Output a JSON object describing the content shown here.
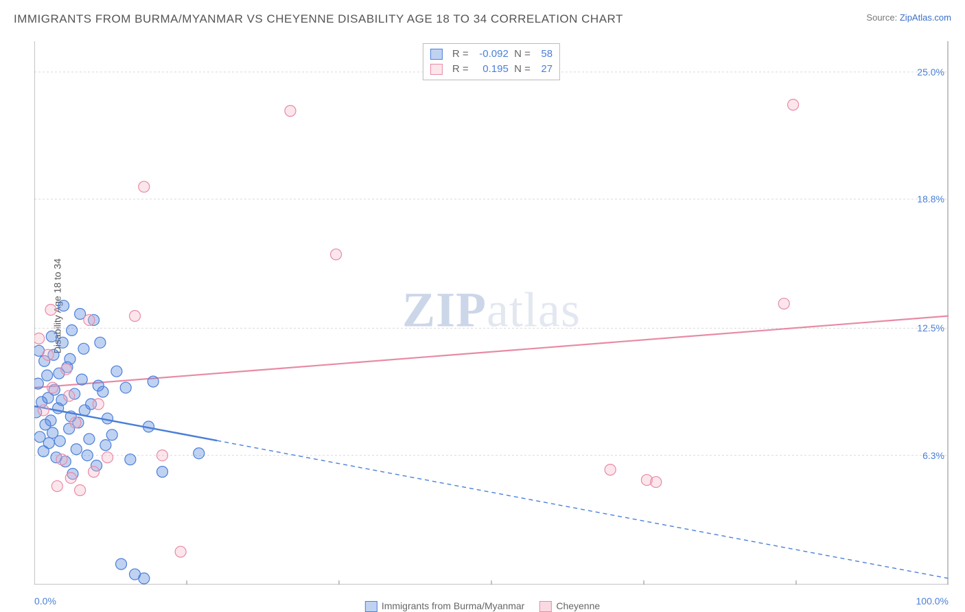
{
  "title": "IMMIGRANTS FROM BURMA/MYANMAR VS CHEYENNE DISABILITY AGE 18 TO 34 CORRELATION CHART",
  "source_label": "Source:",
  "source_name": "ZipAtlas.com",
  "y_axis_label": "Disability Age 18 to 34",
  "watermark_a": "ZIP",
  "watermark_b": "atlas",
  "chart": {
    "type": "scatter",
    "xlim": [
      0,
      100
    ],
    "ylim": [
      0,
      26.5
    ],
    "x_tick_labels": [
      "0.0%",
      "100.0%"
    ],
    "x_tick_positions": [
      0,
      100
    ],
    "x_minor_ticks": [
      16.67,
      33.33,
      50,
      66.67,
      83.33
    ],
    "y_tick_labels": [
      "6.3%",
      "12.5%",
      "18.8%",
      "25.0%"
    ],
    "y_tick_positions": [
      6.3,
      12.5,
      18.8,
      25.0
    ],
    "grid_color": "#d9d9d9",
    "axis_color": "#888888",
    "background_color": "#ffffff",
    "marker_radius": 8,
    "marker_stroke_width": 1.2,
    "marker_fill_opacity": 0.35,
    "series": [
      {
        "name": "Immigrants from Burma/Myanmar",
        "legend_label": "Immigrants from Burma/Myanmar",
        "color_stroke": "#4a7fd9",
        "color_fill": "#4a7fd9",
        "R": "-0.092",
        "N": "58",
        "trend": {
          "x1": 0,
          "y1": 8.7,
          "x2": 100,
          "y2": 0.3,
          "solid_until_x": 20,
          "line_width": 2.5,
          "dash": "6,5"
        },
        "points": [
          [
            0.2,
            8.4
          ],
          [
            0.4,
            9.8
          ],
          [
            0.6,
            7.2
          ],
          [
            0.8,
            8.9
          ],
          [
            1.0,
            6.5
          ],
          [
            1.2,
            7.8
          ],
          [
            1.4,
            10.2
          ],
          [
            1.5,
            9.1
          ],
          [
            1.6,
            6.9
          ],
          [
            1.8,
            8.0
          ],
          [
            2.0,
            7.4
          ],
          [
            2.2,
            9.5
          ],
          [
            2.4,
            6.2
          ],
          [
            2.6,
            8.6
          ],
          [
            2.8,
            7.0
          ],
          [
            3.0,
            9.0
          ],
          [
            3.2,
            13.6
          ],
          [
            3.4,
            6.0
          ],
          [
            3.6,
            10.6
          ],
          [
            3.8,
            7.6
          ],
          [
            4.0,
            8.2
          ],
          [
            4.2,
            5.4
          ],
          [
            4.4,
            9.3
          ],
          [
            4.6,
            6.6
          ],
          [
            4.8,
            7.9
          ],
          [
            5.0,
            13.2
          ],
          [
            5.2,
            10.0
          ],
          [
            5.5,
            8.5
          ],
          [
            5.8,
            6.3
          ],
          [
            6.0,
            7.1
          ],
          [
            6.5,
            12.9
          ],
          [
            6.8,
            5.8
          ],
          [
            7.2,
            11.8
          ],
          [
            7.5,
            9.4
          ],
          [
            7.8,
            6.8
          ],
          [
            8.0,
            8.1
          ],
          [
            8.5,
            7.3
          ],
          [
            9.0,
            10.4
          ],
          [
            9.5,
            1.0
          ],
          [
            10.0,
            9.6
          ],
          [
            10.5,
            6.1
          ],
          [
            11.0,
            0.5
          ],
          [
            12.0,
            0.3
          ],
          [
            12.5,
            7.7
          ],
          [
            13.0,
            9.9
          ],
          [
            14.0,
            5.5
          ],
          [
            2.1,
            11.2
          ],
          [
            3.1,
            11.8
          ],
          [
            4.1,
            12.4
          ],
          [
            1.1,
            10.9
          ],
          [
            0.5,
            11.4
          ],
          [
            1.9,
            12.1
          ],
          [
            2.7,
            10.3
          ],
          [
            3.9,
            11.0
          ],
          [
            5.4,
            11.5
          ],
          [
            6.2,
            8.8
          ],
          [
            7.0,
            9.7
          ],
          [
            18.0,
            6.4
          ]
        ]
      },
      {
        "name": "Cheyenne",
        "legend_label": "Cheyenne",
        "color_stroke": "#e88aa5",
        "color_fill": "#f4b6c8",
        "R": "0.195",
        "N": "27",
        "trend": {
          "x1": 0,
          "y1": 9.6,
          "x2": 100,
          "y2": 13.1,
          "solid_until_x": 100,
          "line_width": 2.2,
          "dash": ""
        },
        "points": [
          [
            0.5,
            12.0
          ],
          [
            1.0,
            8.5
          ],
          [
            1.5,
            11.2
          ],
          [
            2.0,
            9.6
          ],
          [
            2.5,
            4.8
          ],
          [
            3.0,
            6.1
          ],
          [
            3.5,
            10.5
          ],
          [
            4.0,
            5.2
          ],
          [
            4.5,
            7.9
          ],
          [
            5.0,
            4.6
          ],
          [
            6.0,
            12.9
          ],
          [
            6.5,
            5.5
          ],
          [
            7.0,
            8.8
          ],
          [
            8.0,
            6.2
          ],
          [
            11.0,
            13.1
          ],
          [
            12.0,
            19.4
          ],
          [
            14.0,
            6.3
          ],
          [
            16.0,
            1.6
          ],
          [
            28.0,
            23.1
          ],
          [
            33.0,
            16.1
          ],
          [
            63.0,
            5.6
          ],
          [
            67.0,
            5.1
          ],
          [
            68.0,
            5.0
          ],
          [
            82.0,
            13.7
          ],
          [
            83.0,
            23.4
          ],
          [
            1.8,
            13.4
          ],
          [
            3.8,
            9.2
          ]
        ]
      }
    ]
  },
  "legend_box": {
    "r_label": "R =",
    "n_label": "N ="
  },
  "tick_label_color": "#4a7fd9"
}
